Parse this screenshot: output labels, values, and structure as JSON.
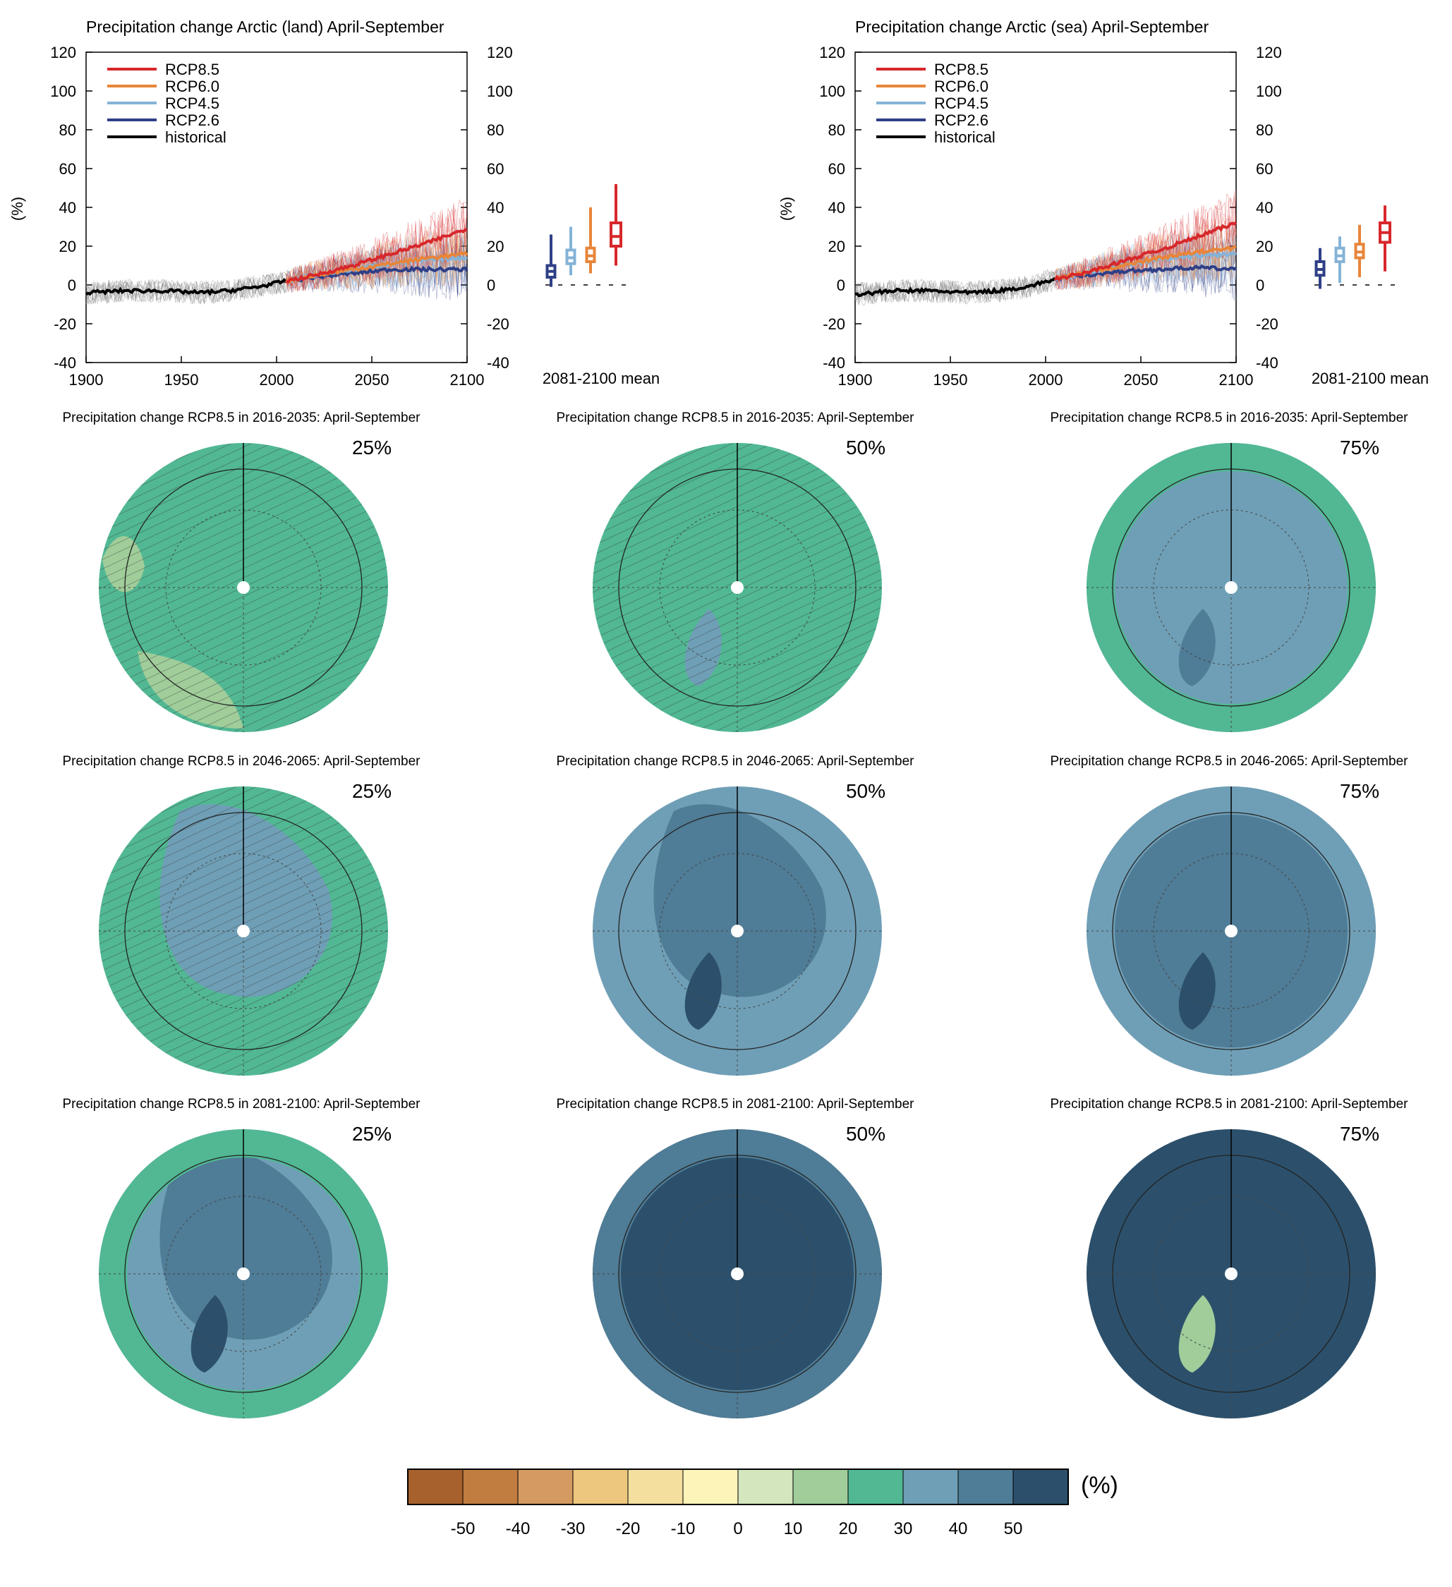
{
  "colors": {
    "rcp85": "#d7272b",
    "rcp60": "#e8853a",
    "rcp45": "#84b3d7",
    "rcp26": "#2f3f87",
    "historical": "#000000",
    "hist_spread": "#888888",
    "ocean_frame": "#000000"
  },
  "chart_data": [
    {
      "type": "line",
      "title": "Precipitation change Arctic (land) April-September",
      "ylabel": "(%)",
      "xlim": [
        1900,
        2100
      ],
      "ylim": [
        -40,
        120
      ],
      "xticks": [
        "1900",
        "1950",
        "2000",
        "2050",
        "2100"
      ],
      "yticks": [
        "-40",
        "-20",
        "0",
        "20",
        "40",
        "60",
        "80",
        "100",
        "120"
      ],
      "legend_position": "top-left",
      "series": [
        {
          "name": "RCP8.5",
          "key": "rcp85",
          "x": [
            2005,
            2020,
            2040,
            2060,
            2080,
            2100
          ],
          "values": [
            2,
            5,
            10,
            16,
            22,
            29
          ]
        },
        {
          "name": "RCP6.0",
          "key": "rcp60",
          "x": [
            2005,
            2020,
            2040,
            2060,
            2080,
            2100
          ],
          "values": [
            2,
            5,
            8,
            11,
            14,
            16
          ]
        },
        {
          "name": "RCP4.5",
          "key": "rcp45",
          "x": [
            2005,
            2020,
            2040,
            2060,
            2080,
            2100
          ],
          "values": [
            2,
            5,
            8,
            11,
            13,
            14
          ]
        },
        {
          "name": "RCP2.6",
          "key": "rcp26",
          "x": [
            2005,
            2020,
            2040,
            2060,
            2080,
            2100
          ],
          "values": [
            2,
            4,
            6,
            8,
            8,
            8
          ]
        },
        {
          "name": "historical",
          "key": "historical",
          "x": [
            1900,
            1920,
            1940,
            1960,
            1975,
            1990,
            2005
          ],
          "values": [
            -4,
            -3,
            -3,
            -4,
            -3,
            -1,
            2
          ]
        }
      ],
      "boxplot": {
        "label": "2081-2100 mean",
        "boxes": [
          {
            "key": "rcp26",
            "min": -1,
            "q1": 4,
            "median": 7,
            "q3": 10,
            "max": 26
          },
          {
            "key": "rcp45",
            "min": 5,
            "q1": 11,
            "median": 14,
            "q3": 18,
            "max": 30
          },
          {
            "key": "rcp60",
            "min": 6,
            "q1": 12,
            "median": 15,
            "q3": 19,
            "max": 40
          },
          {
            "key": "rcp85",
            "min": 10,
            "q1": 20,
            "median": 25,
            "q3": 32,
            "max": 52
          }
        ]
      }
    },
    {
      "type": "line",
      "title": "Precipitation change Arctic (sea) April-September",
      "ylabel": "(%)",
      "xlim": [
        1900,
        2100
      ],
      "ylim": [
        -40,
        120
      ],
      "xticks": [
        "1900",
        "1950",
        "2000",
        "2050",
        "2100"
      ],
      "yticks": [
        "-40",
        "-20",
        "0",
        "20",
        "40",
        "60",
        "80",
        "100",
        "120"
      ],
      "legend_position": "top-left",
      "series": [
        {
          "name": "RCP8.5",
          "key": "rcp85",
          "x": [
            2005,
            2020,
            2040,
            2060,
            2080,
            2100
          ],
          "values": [
            3,
            6,
            12,
            18,
            25,
            32
          ]
        },
        {
          "name": "RCP6.0",
          "key": "rcp60",
          "x": [
            2005,
            2020,
            2040,
            2060,
            2080,
            2100
          ],
          "values": [
            3,
            6,
            10,
            14,
            17,
            19
          ]
        },
        {
          "name": "RCP4.5",
          "key": "rcp45",
          "x": [
            2005,
            2020,
            2040,
            2060,
            2080,
            2100
          ],
          "values": [
            3,
            6,
            10,
            13,
            15,
            16
          ]
        },
        {
          "name": "RCP2.6",
          "key": "rcp26",
          "x": [
            2005,
            2020,
            2040,
            2060,
            2080,
            2100
          ],
          "values": [
            3,
            5,
            7,
            8,
            9,
            8
          ]
        },
        {
          "name": "historical",
          "key": "historical",
          "x": [
            1900,
            1920,
            1940,
            1960,
            1975,
            1990,
            2005
          ],
          "values": [
            -5,
            -3,
            -3,
            -4,
            -3,
            -1,
            3
          ]
        }
      ],
      "boxplot": {
        "label": "2081-2100 mean",
        "boxes": [
          {
            "key": "rcp26",
            "min": -2,
            "q1": 5,
            "median": 8,
            "q3": 12,
            "max": 19
          },
          {
            "key": "rcp45",
            "min": 1,
            "q1": 12,
            "median": 15,
            "q3": 19,
            "max": 25
          },
          {
            "key": "rcp60",
            "min": 4,
            "q1": 14,
            "median": 17,
            "q3": 21,
            "max": 31
          },
          {
            "key": "rcp85",
            "min": 7,
            "q1": 22,
            "median": 27,
            "q3": 32,
            "max": 41
          }
        ]
      }
    }
  ],
  "maps": {
    "rows": [
      {
        "title": "Precipitation change RCP8.5 in 2016-2035: April-September",
        "panels": [
          {
            "percentile": "25%",
            "base_level": 10,
            "patches": [
              {
                "level": 0,
                "area": "atlantic"
              },
              {
                "level": 0,
                "area": "siberia"
              }
            ],
            "hatched": true
          },
          {
            "percentile": "50%",
            "base_level": 10,
            "patches": [
              {
                "level": 20,
                "area": "greenland"
              }
            ],
            "hatched": true
          },
          {
            "percentile": "75%",
            "base_level": 20,
            "patches": [
              {
                "level": 30,
                "area": "greenland"
              },
              {
                "level": 10,
                "area": "rim"
              }
            ],
            "hatched": false
          }
        ]
      },
      {
        "title": "Precipitation change RCP8.5 in 2046-2065: April-September",
        "panels": [
          {
            "percentile": "25%",
            "base_level": 10,
            "patches": [
              {
                "level": 20,
                "area": "center"
              }
            ],
            "hatched": true
          },
          {
            "percentile": "50%",
            "base_level": 20,
            "patches": [
              {
                "level": 30,
                "area": "center"
              },
              {
                "level": 40,
                "area": "greenland"
              }
            ],
            "hatched": false
          },
          {
            "percentile": "75%",
            "base_level": 30,
            "patches": [
              {
                "level": 20,
                "area": "rim"
              },
              {
                "level": 40,
                "area": "greenland"
              }
            ],
            "hatched": false
          }
        ]
      },
      {
        "title": "Precipitation change RCP8.5 in 2081-2100: April-September",
        "panels": [
          {
            "percentile": "25%",
            "base_level": 20,
            "patches": [
              {
                "level": 30,
                "area": "center"
              },
              {
                "level": 40,
                "area": "greenland"
              },
              {
                "level": 10,
                "area": "rim"
              }
            ],
            "hatched": false
          },
          {
            "percentile": "50%",
            "base_level": 40,
            "patches": [
              {
                "level": 30,
                "area": "rim"
              },
              {
                "level": 50,
                "area": "greenland"
              }
            ],
            "hatched": false
          },
          {
            "percentile": "75%",
            "base_level": 50,
            "patches": [
              {
                "level": 40,
                "area": "rim"
              },
              {
                "level": 50,
                "area": "center"
              },
              {
                "level": 60,
                "area": "greenland"
              }
            ],
            "hatched": false
          }
        ]
      }
    ]
  },
  "colorbar": {
    "unit": "(%)",
    "ticks": [
      "-50",
      "-40",
      "-30",
      "-20",
      "-10",
      "0",
      "10",
      "20",
      "30",
      "40",
      "50"
    ],
    "levels": [
      -60,
      -50,
      -40,
      -30,
      -20,
      -10,
      0,
      10,
      20,
      30,
      40,
      50
    ],
    "colors": [
      "#a7612d",
      "#c17c3f",
      "#d49a61",
      "#eec77e",
      "#f4df9e",
      "#fdf4ba",
      "#d4e6bd",
      "#a0cd9a",
      "#51b893",
      "#6f9fb6",
      "#4f7c96",
      "#2c506b"
    ]
  }
}
